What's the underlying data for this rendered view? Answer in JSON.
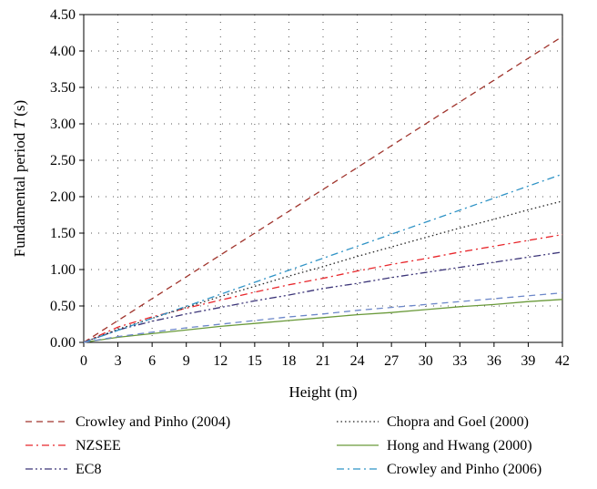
{
  "chart_data": {
    "type": "line",
    "title": "",
    "xlabel": "Height (m)",
    "ylabel": "Fundamental period T (s)",
    "ylabel_prefix": "Fundamental period ",
    "ylabel_var": "T",
    "ylabel_suffix": " (s)",
    "xlim": [
      0,
      42
    ],
    "ylim": [
      0,
      4.5
    ],
    "x_ticks": [
      "0",
      "3",
      "6",
      "9",
      "12",
      "15",
      "18",
      "21",
      "24",
      "27",
      "30",
      "33",
      "36",
      "39",
      "42"
    ],
    "y_ticks": [
      "0.00",
      "0.50",
      "1.00",
      "1.50",
      "2.00",
      "2.50",
      "3.00",
      "3.50",
      "4.00",
      "4.50"
    ],
    "grid": "dotted",
    "legend_position": "bottom",
    "series": [
      {
        "name": "Crowley and Pinho (2004)",
        "color": "#a0342c",
        "dash": "dashed",
        "formula": "T = 0.1 H",
        "x": [
          0,
          3,
          6,
          9,
          12,
          15,
          18,
          21,
          24,
          27,
          30,
          33,
          36,
          39,
          42
        ],
        "y": [
          0,
          0.3,
          0.6,
          0.9,
          1.2,
          1.5,
          1.8,
          2.1,
          2.4,
          2.7,
          3.0,
          3.3,
          3.6,
          3.9,
          4.2
        ]
      },
      {
        "name": "NZSEE",
        "color": "#e8262b",
        "dash": "dash-dot",
        "formula": "T = 0.09 H^0.75",
        "x": [
          0,
          3,
          6,
          9,
          12,
          15,
          18,
          21,
          24,
          27,
          30,
          33,
          36,
          39,
          42
        ],
        "y": [
          0,
          0.21,
          0.35,
          0.47,
          0.58,
          0.69,
          0.79,
          0.88,
          0.98,
          1.07,
          1.15,
          1.24,
          1.32,
          1.4,
          1.48
        ]
      },
      {
        "name": "EC8",
        "color": "#3b3478",
        "dash": "dash-dot-dot",
        "formula": "T = 0.075 H^0.75",
        "x": [
          0,
          3,
          6,
          9,
          12,
          15,
          18,
          21,
          24,
          27,
          30,
          33,
          36,
          39,
          42
        ],
        "y": [
          0,
          0.17,
          0.29,
          0.39,
          0.48,
          0.57,
          0.65,
          0.74,
          0.81,
          0.89,
          0.96,
          1.03,
          1.1,
          1.17,
          1.24
        ]
      },
      {
        "name": "Chopra and Goel (2000)",
        "color": "#222222",
        "dash": "dotted",
        "formula": "T = 0.067 H^0.9",
        "x": [
          0,
          3,
          6,
          9,
          12,
          15,
          18,
          21,
          24,
          27,
          30,
          33,
          36,
          39,
          42
        ],
        "y": [
          0,
          0.18,
          0.33,
          0.48,
          0.63,
          0.77,
          0.91,
          1.04,
          1.18,
          1.31,
          1.44,
          1.57,
          1.69,
          1.82,
          1.94
        ]
      },
      {
        "name": "Hong and Hwang (2000)",
        "color": "#6a9a3a",
        "dash": "solid",
        "formula": "T = 0.0294 H^0.804",
        "x": [
          0,
          3,
          6,
          9,
          12,
          15,
          18,
          21,
          24,
          27,
          30,
          33,
          36,
          39,
          42
        ],
        "y": [
          0,
          0.07,
          0.12,
          0.17,
          0.22,
          0.26,
          0.3,
          0.34,
          0.38,
          0.41,
          0.45,
          0.49,
          0.52,
          0.56,
          0.59
        ]
      },
      {
        "name": "Crowley and Pinho (2006)",
        "color": "#2f93c6",
        "dash": "dash-dot",
        "formula": "T = 0.055 H",
        "x": [
          0,
          3,
          6,
          9,
          12,
          15,
          18,
          21,
          24,
          27,
          30,
          33,
          36,
          39,
          42
        ],
        "y": [
          0,
          0.165,
          0.33,
          0.495,
          0.66,
          0.825,
          0.99,
          1.155,
          1.32,
          1.485,
          1.65,
          1.815,
          1.98,
          2.145,
          2.31
        ]
      },
      {
        "name": "",
        "color": "#6c87c9",
        "dash": "dashed",
        "formula": "T = 0.034 H^0.8",
        "x": [
          0,
          3,
          6,
          9,
          12,
          15,
          18,
          21,
          24,
          27,
          30,
          33,
          36,
          39,
          42
        ],
        "y": [
          0,
          0.08,
          0.14,
          0.2,
          0.25,
          0.3,
          0.35,
          0.39,
          0.44,
          0.48,
          0.52,
          0.56,
          0.6,
          0.64,
          0.68
        ]
      }
    ]
  }
}
